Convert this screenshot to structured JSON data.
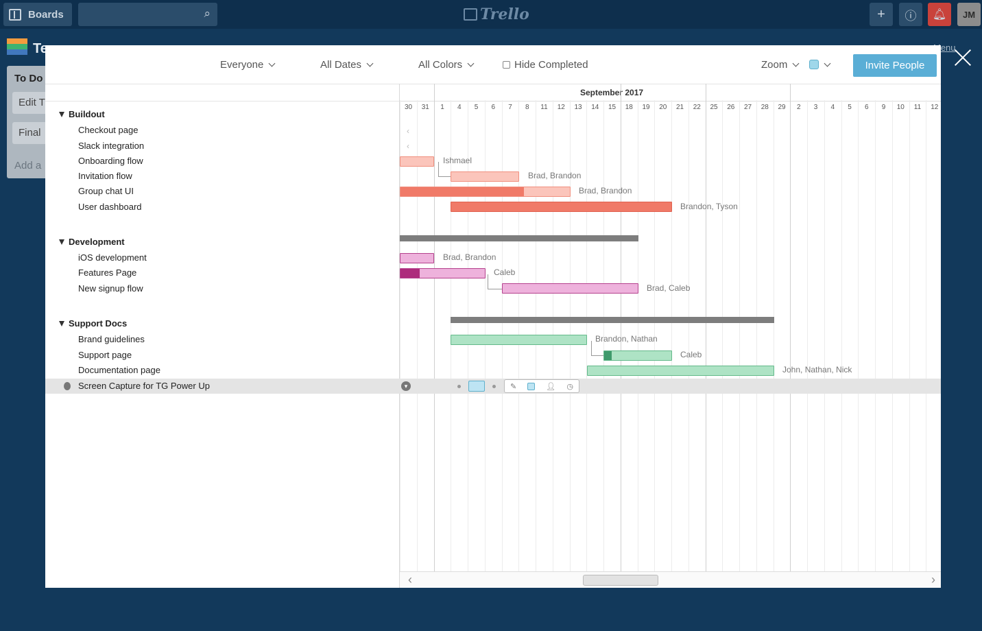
{
  "topbar": {
    "boards_label": "Boards",
    "logo_text": "Trello",
    "avatar_initials": "JM"
  },
  "background_board": {
    "title": "Te",
    "list_title": "To Do",
    "cards": [
      "Edit T",
      "Final"
    ],
    "add_label": "Add a",
    "show_menu": "w Menu"
  },
  "toolbar": {
    "everyone": "Everyone",
    "all_dates": "All Dates",
    "all_colors": "All Colors",
    "hide_completed": "Hide Completed",
    "zoom": "Zoom",
    "invite": "Invite People"
  },
  "timeline": {
    "month": "September 2017",
    "days": [
      "30",
      "31",
      "1",
      "4",
      "5",
      "6",
      "7",
      "8",
      "11",
      "12",
      "13",
      "14",
      "15",
      "18",
      "19",
      "20",
      "21",
      "22",
      "25",
      "26",
      "27",
      "28",
      "29",
      "2",
      "3",
      "4",
      "5",
      "6",
      "9",
      "10",
      "11",
      "12"
    ]
  },
  "groups": [
    {
      "name": "Buildout",
      "tasks": [
        {
          "label": "Checkout page",
          "assignee": ""
        },
        {
          "label": "Slack integration",
          "assignee": ""
        },
        {
          "label": "Onboarding flow",
          "assignee": "Ishmael"
        },
        {
          "label": "Invitation flow",
          "assignee": "Brad, Brandon"
        },
        {
          "label": "Group chat UI",
          "assignee": "Brad, Brandon"
        },
        {
          "label": "User dashboard",
          "assignee": "Brandon, Tyson"
        }
      ]
    },
    {
      "name": "Development",
      "tasks": [
        {
          "label": "iOS development",
          "assignee": "Brad, Brandon"
        },
        {
          "label": "Features Page",
          "assignee": "Caleb"
        },
        {
          "label": "New signup flow",
          "assignee": "Brad, Caleb"
        }
      ]
    },
    {
      "name": "Support Docs",
      "tasks": [
        {
          "label": "Brand guidelines",
          "assignee": "Brandon, Nathan"
        },
        {
          "label": "Support page",
          "assignee": "Caleb"
        },
        {
          "label": "Documentation page",
          "assignee": "John, Nathan, Nick"
        }
      ]
    }
  ],
  "selected_task": "Screen Capture for TG Power Up",
  "colors": {
    "salmon": "#f08f7e",
    "pink": "#dd8fc6",
    "green": "#8fd4ad",
    "accent": "#5aaed6"
  }
}
